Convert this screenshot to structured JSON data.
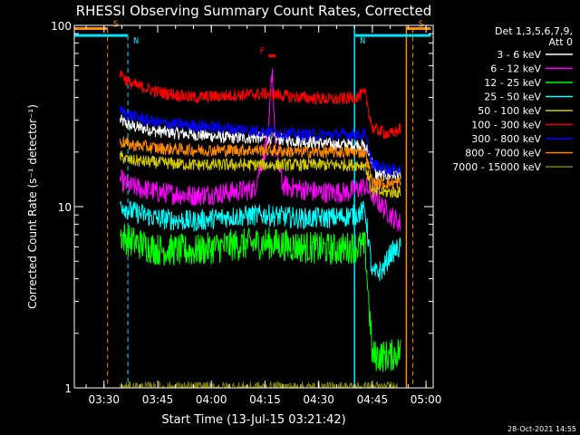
{
  "chart_data": {
    "type": "line",
    "title": "RHESSI Observing Summary Count Rates, Corrected",
    "xlabel": "Start Time (13-Jul-15 03:21:42)",
    "ylabel": "Corrected Count Rate (s⁻¹ detector⁻¹)",
    "timestamp": "28-Oct-2021 14:55",
    "legend_header": [
      "Det 1,3,5,6,7,9,",
      "Att 0"
    ],
    "legend_position": "right",
    "y_scale": "log",
    "ylim": [
      1,
      100
    ],
    "y_ticks": [
      {
        "value": 1,
        "label": "1"
      },
      {
        "value": 10,
        "label": "10"
      },
      {
        "value": 100,
        "label": "100"
      }
    ],
    "xlim": [
      "03:21:42",
      "05:02:00"
    ],
    "x_ticks": [
      "03:30",
      "03:45",
      "04:00",
      "04:15",
      "04:30",
      "04:45",
      "05:00"
    ],
    "flags": [
      {
        "label": "S",
        "color": "#ff8c00",
        "start": "03:21:42",
        "end": "03:31:00",
        "line": "03:31:00",
        "level": 96
      },
      {
        "label": "S",
        "color": "#ff8c00",
        "start": "04:54:30",
        "end": "05:01:20",
        "line": "04:56:20",
        "level": 96
      },
      {
        "label": "N",
        "color": "#00e5ff",
        "start": "03:21:42",
        "end": "03:36:40",
        "line": "03:36:40",
        "level": 88
      },
      {
        "label": "N",
        "color": "#00e5ff",
        "start": "04:40:00",
        "end": "05:01:20",
        "line": "04:40:00",
        "level": 88
      },
      {
        "label": "F",
        "color": "#ff0000",
        "start": "04:16:00",
        "end": "04:18:00",
        "line": "04:17:00",
        "level": 68
      }
    ],
    "vertical_lines": [
      {
        "time": "04:40:00",
        "color": "#00e5ff",
        "style": "solid"
      },
      {
        "time": "04:54:30",
        "color": "#ff8c00",
        "style": "solid"
      }
    ],
    "series": [
      {
        "name": "3 - 6 keV",
        "color": "#ffffff",
        "points": [
          [
            "03:34:30",
            30
          ],
          [
            "03:37:00",
            28
          ],
          [
            "03:45:00",
            26
          ],
          [
            "03:55:00",
            25
          ],
          [
            "04:05:00",
            24
          ],
          [
            "04:15:00",
            24
          ],
          [
            "04:25:00",
            23
          ],
          [
            "04:35:00",
            22
          ],
          [
            "04:42:00",
            22
          ],
          [
            "04:44:00",
            20
          ],
          [
            "04:46:00",
            15
          ],
          [
            "04:50:00",
            15
          ],
          [
            "04:53:00",
            15
          ]
        ]
      },
      {
        "name": "6 - 12 keV",
        "color": "#ff00ff",
        "points": [
          [
            "03:34:30",
            14
          ],
          [
            "03:37:00",
            13
          ],
          [
            "03:45:00",
            12
          ],
          [
            "03:55:00",
            11.5
          ],
          [
            "04:05:00",
            12
          ],
          [
            "04:12:00",
            12.5
          ],
          [
            "04:16:00",
            25
          ],
          [
            "04:17:00",
            60
          ],
          [
            "04:18:00",
            20
          ],
          [
            "04:20:00",
            13
          ],
          [
            "04:30:00",
            12
          ],
          [
            "04:38:00",
            12
          ],
          [
            "04:43:00",
            13
          ],
          [
            "04:46:00",
            11
          ],
          [
            "04:50:00",
            9
          ],
          [
            "04:53:00",
            8
          ]
        ]
      },
      {
        "name": "12 - 25 keV",
        "color": "#00ff00",
        "points": [
          [
            "03:34:30",
            7
          ],
          [
            "03:37:00",
            6.5
          ],
          [
            "03:45:00",
            5.8
          ],
          [
            "03:55:00",
            5.7
          ],
          [
            "04:05:00",
            6.1
          ],
          [
            "04:15:00",
            6.3
          ],
          [
            "04:25:00",
            6
          ],
          [
            "04:35:00",
            5.8
          ],
          [
            "04:40:00",
            6
          ],
          [
            "04:43:00",
            6
          ],
          [
            "04:45:00",
            1.5
          ],
          [
            "04:50:00",
            1.5
          ],
          [
            "04:53:00",
            1.6
          ]
        ]
      },
      {
        "name": "25 - 50 keV",
        "color": "#00ffff",
        "points": [
          [
            "03:34:30",
            10.5
          ],
          [
            "03:37:00",
            9.5
          ],
          [
            "03:45:00",
            8.6
          ],
          [
            "03:55:00",
            8.3
          ],
          [
            "04:05:00",
            8.8
          ],
          [
            "04:15:00",
            9
          ],
          [
            "04:25:00",
            8.6
          ],
          [
            "04:35:00",
            8.7
          ],
          [
            "04:40:00",
            9
          ],
          [
            "04:43:00",
            9.5
          ],
          [
            "04:45:00",
            4.2
          ],
          [
            "04:48:00",
            4.5
          ],
          [
            "04:50:00",
            5.5
          ],
          [
            "04:53:00",
            6
          ]
        ]
      },
      {
        "name": "50 - 100 keV",
        "color": "#d0c800",
        "points": [
          [
            "03:34:30",
            19
          ],
          [
            "03:37:00",
            18
          ],
          [
            "03:45:00",
            17.5
          ],
          [
            "03:55:00",
            17
          ],
          [
            "04:05:00",
            17
          ],
          [
            "04:15:00",
            17
          ],
          [
            "04:25:00",
            17
          ],
          [
            "04:35:00",
            17
          ],
          [
            "04:40:00",
            17
          ],
          [
            "04:43:00",
            17
          ],
          [
            "04:45:00",
            12
          ],
          [
            "04:50:00",
            12
          ],
          [
            "04:53:00",
            12
          ]
        ]
      },
      {
        "name": "100 - 300 keV",
        "color": "#ff0000",
        "points": [
          [
            "03:34:30",
            55
          ],
          [
            "03:37:00",
            48
          ],
          [
            "03:45:00",
            43
          ],
          [
            "03:55:00",
            40
          ],
          [
            "04:05:00",
            41
          ],
          [
            "04:15:00",
            42
          ],
          [
            "04:25:00",
            40
          ],
          [
            "04:35:00",
            39
          ],
          [
            "04:40:00",
            40
          ],
          [
            "04:43:00",
            42
          ],
          [
            "04:45:00",
            27
          ],
          [
            "04:50:00",
            25
          ],
          [
            "04:53:00",
            27
          ]
        ]
      },
      {
        "name": "300 - 800 keV",
        "color": "#0000ff",
        "points": [
          [
            "03:34:30",
            34
          ],
          [
            "03:37:00",
            32
          ],
          [
            "03:45:00",
            29
          ],
          [
            "03:55:00",
            28
          ],
          [
            "04:05:00",
            27
          ],
          [
            "04:15:00",
            26
          ],
          [
            "04:25:00",
            25
          ],
          [
            "04:35:00",
            25
          ],
          [
            "04:40:00",
            25
          ],
          [
            "04:43:00",
            25
          ],
          [
            "04:45:00",
            17
          ],
          [
            "04:50:00",
            16
          ],
          [
            "04:53:00",
            16
          ]
        ]
      },
      {
        "name": "800 - 7000 keV",
        "color": "#ff8c00",
        "points": [
          [
            "03:34:30",
            23
          ],
          [
            "03:37:00",
            22
          ],
          [
            "03:45:00",
            21
          ],
          [
            "03:55:00",
            20.5
          ],
          [
            "04:05:00",
            20.5
          ],
          [
            "04:15:00",
            20.5
          ],
          [
            "04:25:00",
            20
          ],
          [
            "04:35:00",
            20
          ],
          [
            "04:40:00",
            20
          ],
          [
            "04:43:00",
            20
          ],
          [
            "04:45:00",
            13.5
          ],
          [
            "04:50:00",
            13.5
          ],
          [
            "04:53:00",
            13.5
          ]
        ]
      },
      {
        "name": "7000 - 15000 keV",
        "color": "#808000",
        "points": [
          [
            "03:34:30",
            1
          ],
          [
            "04:53:00",
            1
          ]
        ]
      }
    ]
  }
}
